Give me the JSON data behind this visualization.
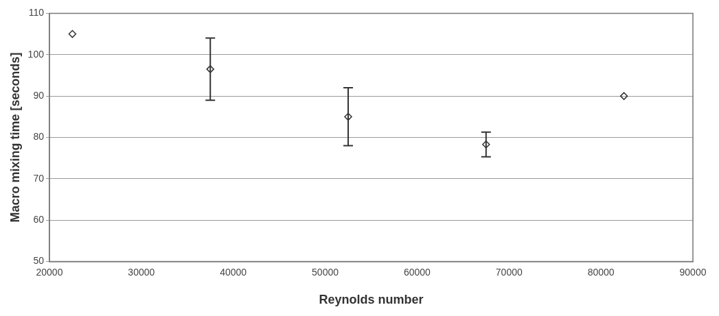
{
  "chart_data": {
    "type": "scatter",
    "xlabel": "Reynolds number",
    "ylabel": "Macro mixing time [seconds]",
    "x": [
      22500,
      37500,
      52500,
      67500,
      82500
    ],
    "series": [
      {
        "color": "#333333",
        "values": [
          105,
          96.5,
          85,
          78.3,
          90
        ],
        "errors": [
          null,
          7.5,
          7,
          3,
          null
        ]
      }
    ],
    "xlim": [
      20000,
      90000
    ],
    "xticks": [
      20000,
      30000,
      40000,
      50000,
      60000,
      70000,
      80000,
      90000
    ],
    "ylim": [
      50,
      110
    ],
    "yticks": [
      50,
      60,
      70,
      80,
      90,
      100,
      110
    ],
    "grid": "y",
    "legend": false,
    "marker": "diamond"
  }
}
